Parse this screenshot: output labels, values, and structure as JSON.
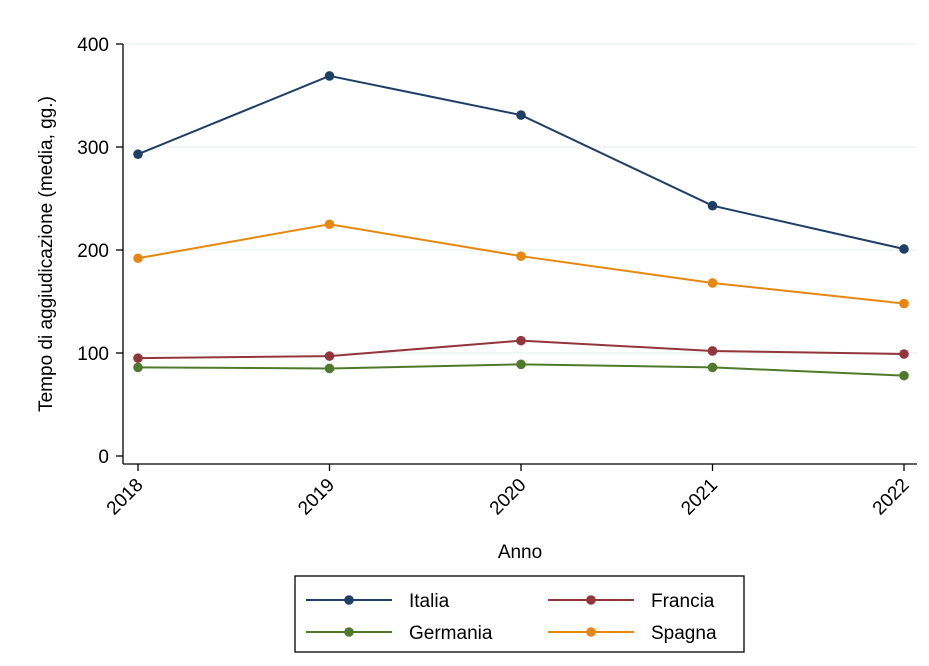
{
  "chart_data": {
    "type": "line",
    "title": "",
    "xlabel": "Anno",
    "ylabel": "Tempo di aggiudicazione (media, gg.)",
    "x": [
      "2018",
      "2019",
      "2020",
      "2021",
      "2022"
    ],
    "ylim": [
      0,
      400
    ],
    "yticks": [
      0,
      100,
      200,
      300,
      400
    ],
    "grid": true,
    "legend_position": "bottom",
    "series": [
      {
        "name": "Italia",
        "color": "#1f3f66",
        "values": [
          293,
          369,
          331,
          243,
          201
        ]
      },
      {
        "name": "Francia",
        "color": "#93363c",
        "values": [
          95,
          97,
          112,
          102,
          99
        ]
      },
      {
        "name": "Germania",
        "color": "#4f7a2b",
        "values": [
          86,
          85,
          89,
          86,
          78
        ]
      },
      {
        "name": "Spagna",
        "color": "#e8870f",
        "values": [
          192,
          225,
          194,
          168,
          148
        ]
      }
    ],
    "legend_order": [
      "Italia",
      "Francia",
      "Germania",
      "Spagna"
    ]
  }
}
